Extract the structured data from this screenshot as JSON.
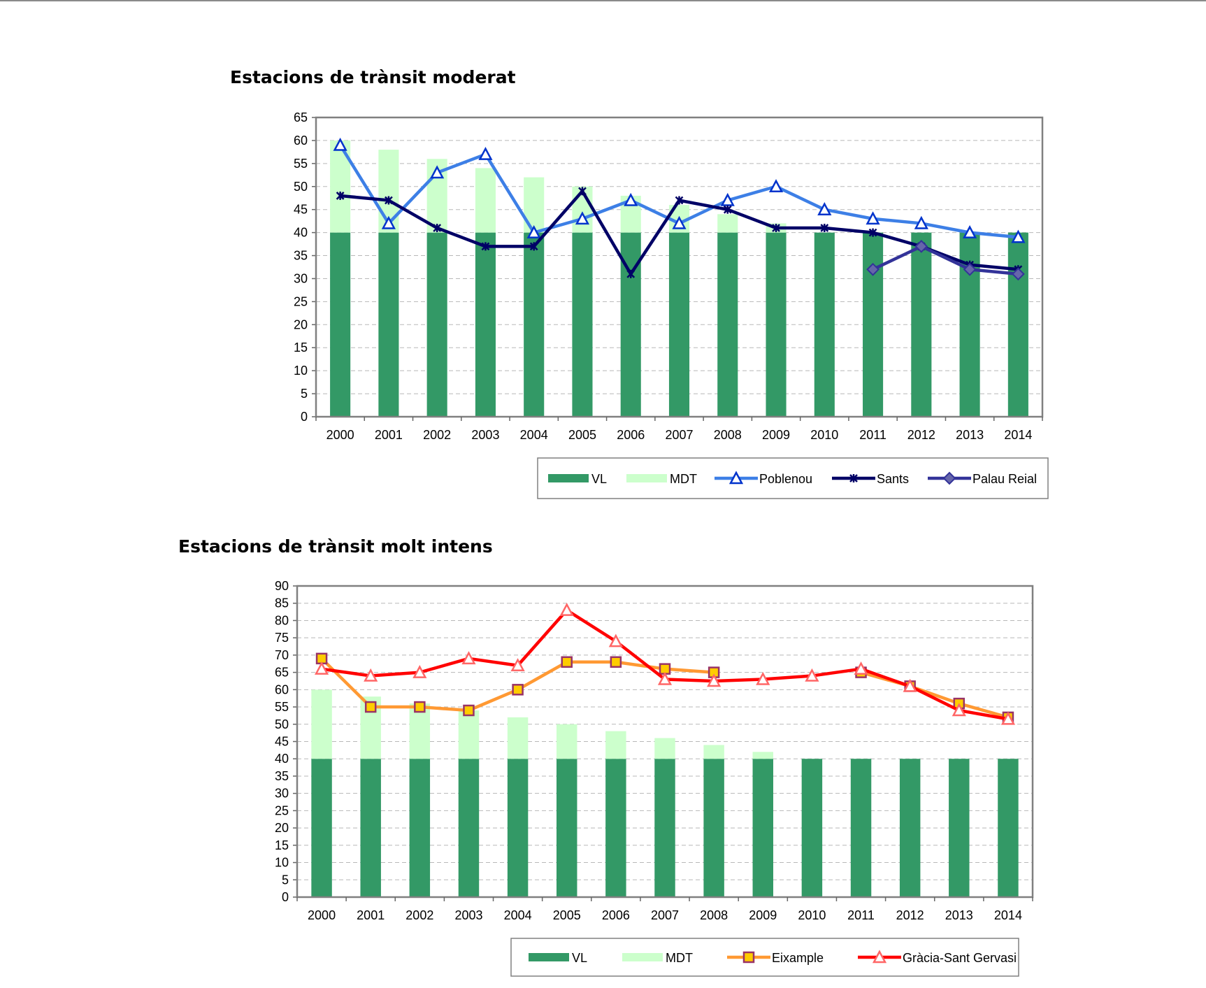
{
  "charts_meta": {
    "chart1_title": "Estacions de trànsit moderat",
    "chart2_title": "Estacions de trànsit molt intens"
  },
  "chart_data": [
    {
      "type": "bar",
      "title": "Estacions de trànsit moderat",
      "categories": [
        "2000",
        "2001",
        "2002",
        "2003",
        "2004",
        "2005",
        "2006",
        "2007",
        "2008",
        "2009",
        "2010",
        "2011",
        "2012",
        "2013",
        "2014"
      ],
      "ylim": [
        0,
        65
      ],
      "ytick_step": 5,
      "grid": true,
      "legend_position": "bottom-right",
      "bars": [
        {
          "name": "VL",
          "color": "#339966",
          "values": [
            40,
            40,
            40,
            40,
            40,
            40,
            40,
            40,
            40,
            40,
            40,
            40,
            40,
            40,
            40
          ]
        },
        {
          "name": "MDT",
          "color": "#ccffcc",
          "values": [
            20,
            18,
            16,
            14,
            12,
            10,
            8,
            6,
            4,
            2,
            0,
            0,
            0,
            0,
            0
          ]
        }
      ],
      "series": [
        {
          "name": "Poblenou",
          "type": "line",
          "color": "#3d7fe6",
          "marker": "triangle",
          "marker_color": "#0033cc",
          "values": [
            59,
            42,
            53,
            57,
            40,
            43,
            47,
            42,
            47,
            50,
            45,
            43,
            42,
            40,
            39
          ]
        },
        {
          "name": "Sants",
          "type": "line",
          "color": "#000066",
          "marker": "star",
          "marker_color": "#000066",
          "values": [
            48,
            47,
            41,
            37,
            37,
            49,
            31,
            47,
            45,
            41,
            41,
            40,
            37,
            33,
            32
          ]
        },
        {
          "name": "Palau Reial",
          "type": "line",
          "color": "#333399",
          "marker": "diamond",
          "marker_color": "#6666aa",
          "values": [
            null,
            null,
            null,
            null,
            null,
            null,
            null,
            null,
            null,
            null,
            null,
            32,
            37,
            32,
            31
          ]
        }
      ],
      "legend": [
        "VL",
        "MDT",
        "Poblenou",
        "Sants",
        "Palau Reial"
      ]
    },
    {
      "type": "bar",
      "title": "Estacions de trànsit molt intens",
      "categories": [
        "2000",
        "2001",
        "2002",
        "2003",
        "2004",
        "2005",
        "2006",
        "2007",
        "2008",
        "2009",
        "2010",
        "2011",
        "2012",
        "2013",
        "2014"
      ],
      "ylim": [
        0,
        90
      ],
      "ytick_step": 5,
      "grid": true,
      "legend_position": "bottom-right",
      "bars": [
        {
          "name": "VL",
          "color": "#339966",
          "values": [
            40,
            40,
            40,
            40,
            40,
            40,
            40,
            40,
            40,
            40,
            40,
            40,
            40,
            40,
            40
          ]
        },
        {
          "name": "MDT",
          "color": "#ccffcc",
          "values": [
            20,
            18,
            16,
            14,
            12,
            10,
            8,
            6,
            4,
            2,
            0,
            0,
            0,
            0,
            0
          ]
        }
      ],
      "series": [
        {
          "name": "Eixample",
          "type": "line",
          "color": "#ff9933",
          "marker": "square",
          "marker_color": "#ffcc00",
          "values": [
            69,
            55,
            55,
            54,
            60,
            68,
            68,
            66,
            65,
            null,
            null,
            65,
            61,
            56,
            52
          ]
        },
        {
          "name": "Gràcia-Sant Gervasi",
          "type": "line",
          "color": "#ff0000",
          "marker": "triangle",
          "marker_color": "#ff6666",
          "values": [
            66,
            64,
            65,
            69,
            67,
            83,
            74,
            63,
            62.5,
            63,
            64,
            66,
            61,
            54,
            51.5
          ]
        }
      ],
      "legend": [
        "VL",
        "MDT",
        "Eixample",
        "Gràcia-Sant Gervasi"
      ]
    }
  ]
}
